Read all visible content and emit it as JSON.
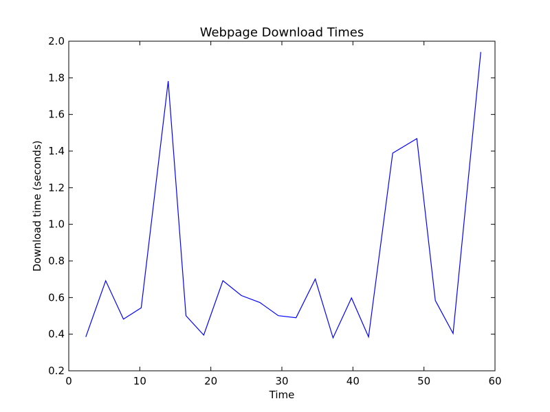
{
  "chart_data": {
    "type": "line",
    "title": "Webpage Download Times",
    "xlabel": "Time",
    "ylabel": "Download time (seconds)",
    "xlim": [
      0,
      60
    ],
    "ylim": [
      0.2,
      2.0
    ],
    "xticks": [
      0,
      10,
      20,
      30,
      40,
      50,
      60
    ],
    "yticks": [
      0.2,
      0.4,
      0.6,
      0.8,
      1.0,
      1.2,
      1.4,
      1.6,
      1.8,
      2.0
    ],
    "xtick_labels": [
      "0",
      "10",
      "20",
      "30",
      "40",
      "50",
      "60"
    ],
    "ytick_labels": [
      "0.2",
      "0.4",
      "0.6",
      "0.8",
      "1.0",
      "1.2",
      "1.4",
      "1.6",
      "1.8",
      "2.0"
    ],
    "grid": false,
    "series": [
      {
        "color": "#0000ff",
        "x": [
          2.4,
          5.2,
          7.7,
          10.2,
          14.0,
          16.5,
          19.0,
          21.7,
          24.3,
          26.9,
          29.5,
          32.0,
          34.7,
          37.2,
          39.8,
          42.2,
          45.6,
          49.0,
          51.6,
          54.1,
          58.0
        ],
        "y": [
          0.385,
          0.692,
          0.482,
          0.544,
          1.782,
          0.501,
          0.395,
          0.692,
          0.611,
          0.573,
          0.501,
          0.49,
          0.701,
          0.38,
          0.598,
          0.385,
          1.389,
          1.468,
          0.584,
          0.404,
          1.941
        ]
      }
    ]
  }
}
